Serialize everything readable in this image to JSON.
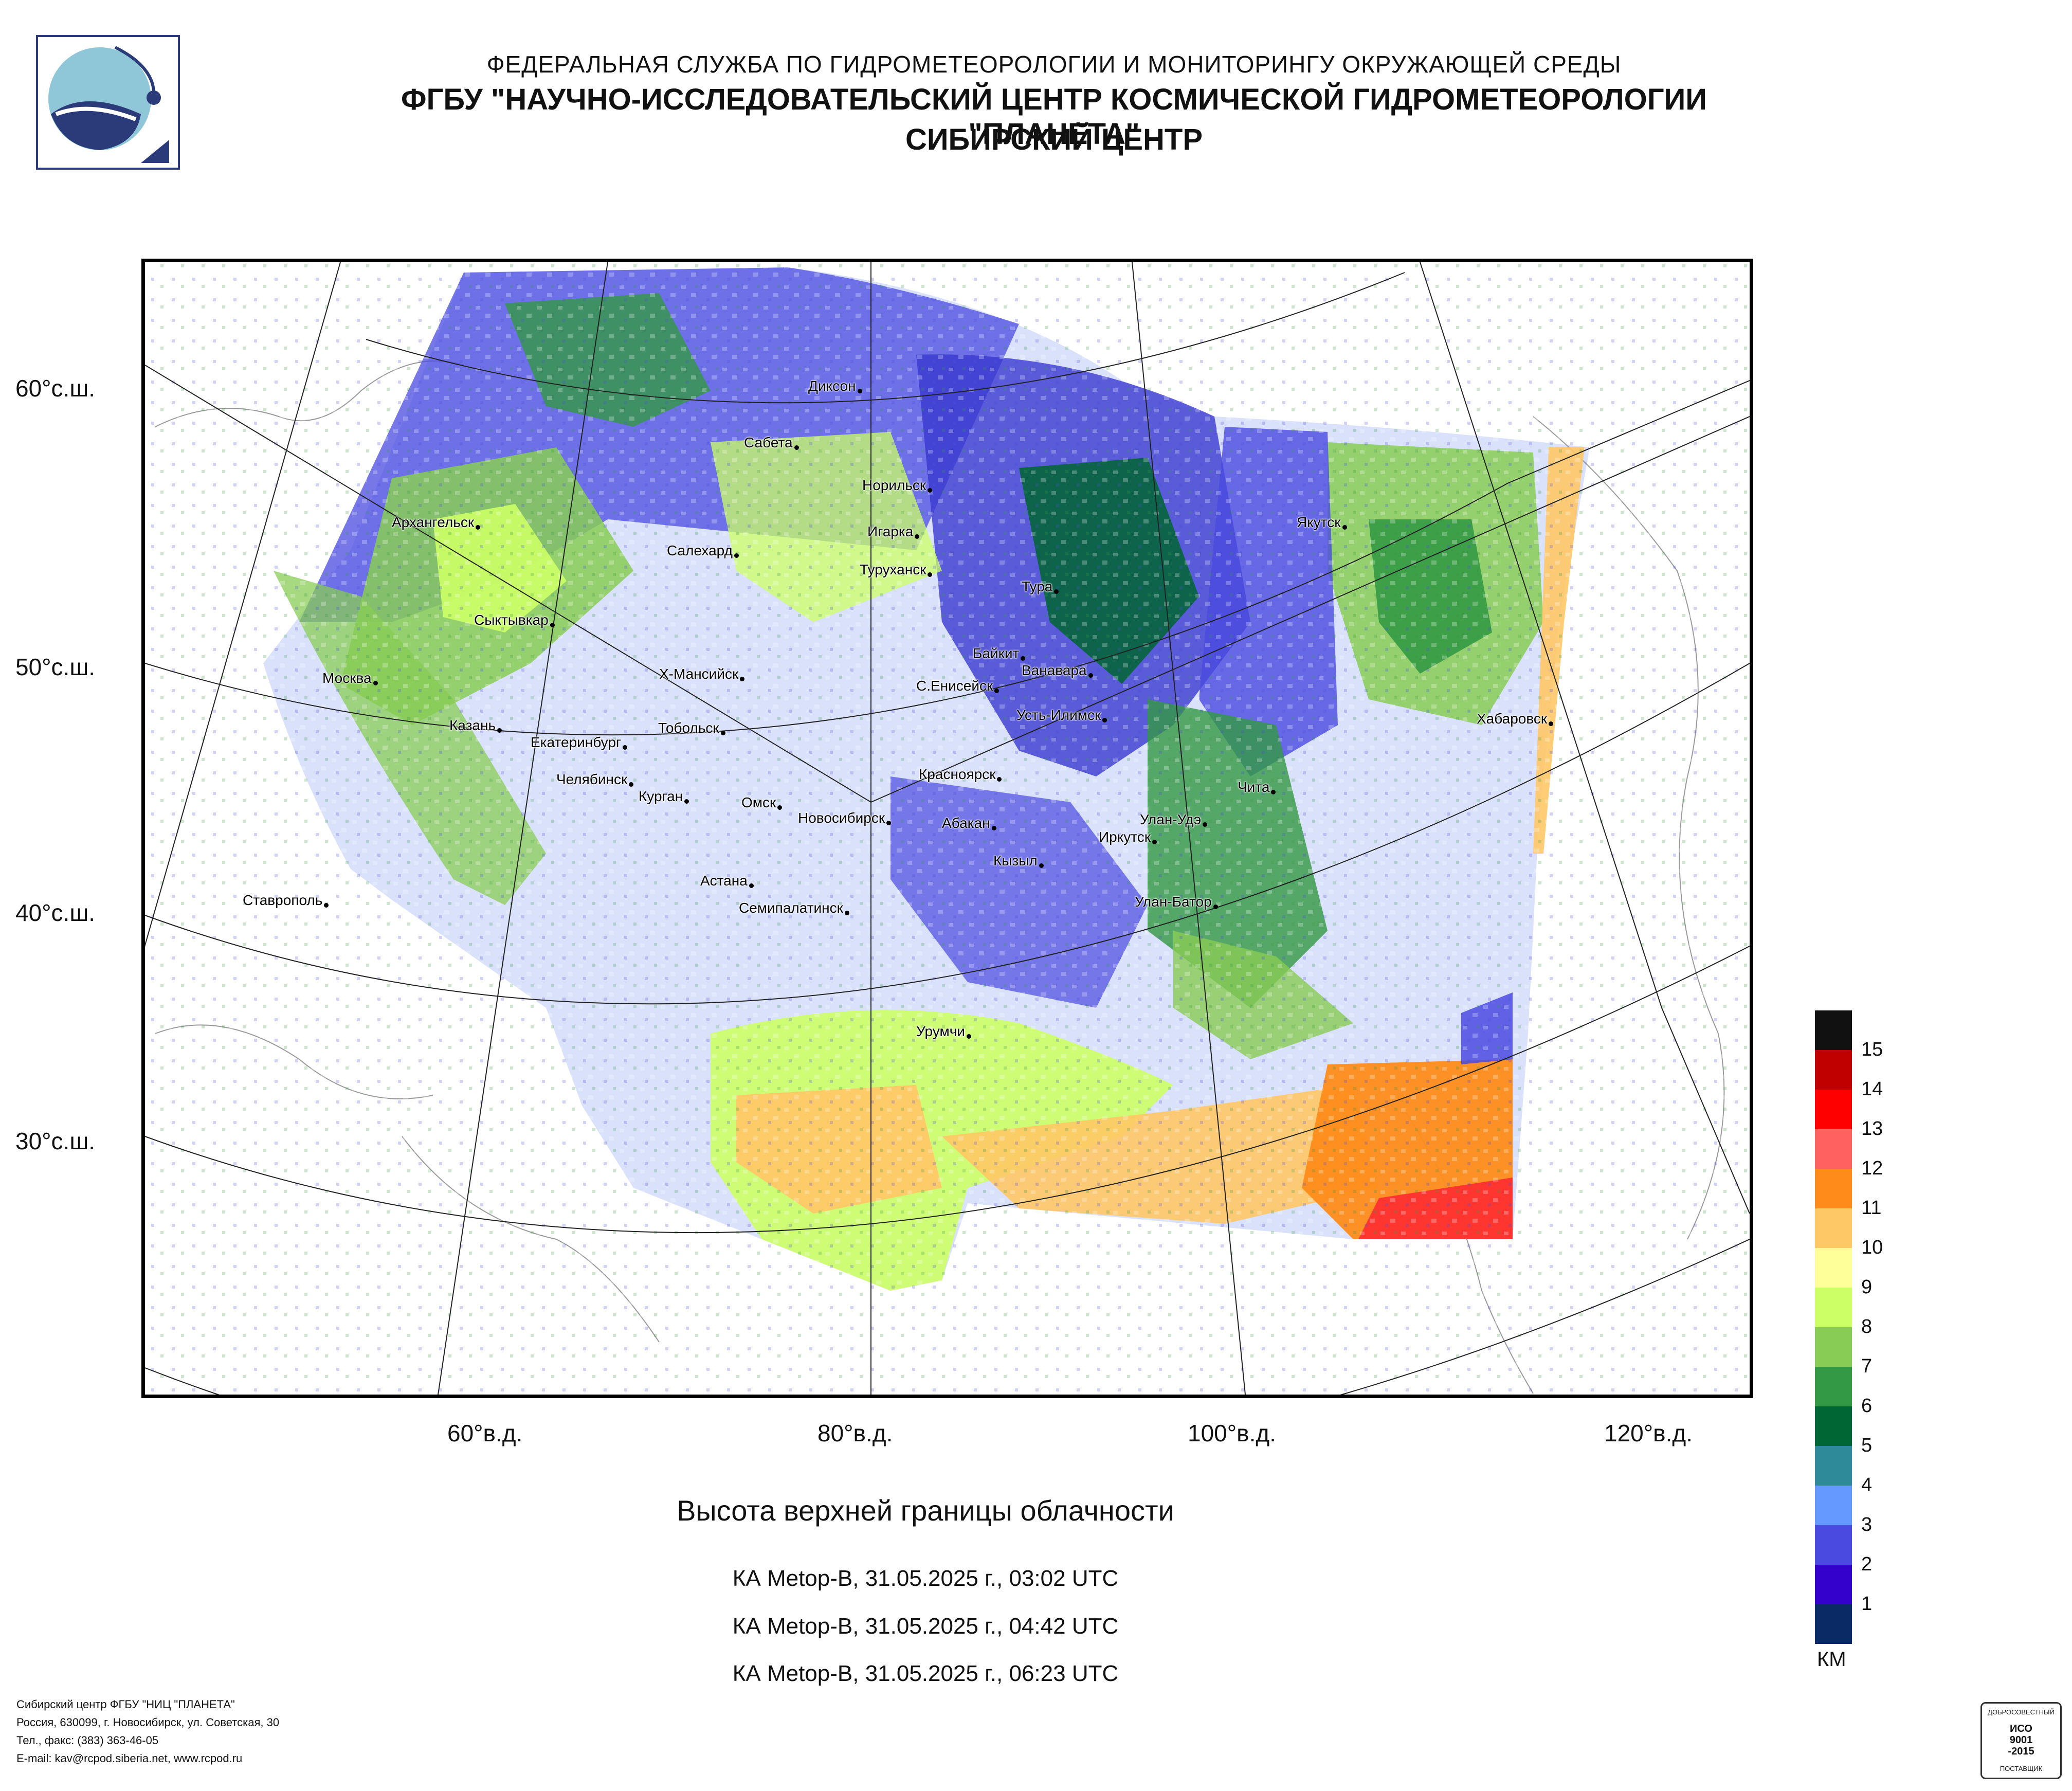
{
  "header": {
    "line1": "ФЕДЕРАЛЬНАЯ СЛУЖБА ПО ГИДРОМЕТЕОРОЛОГИИ И МОНИТОРИНГУ ОКРУЖАЮЩЕЙ СРЕДЫ",
    "line2": "ФГБУ \"НАУЧНО-ИССЛЕДОВАТЕЛЬСКИЙ ЦЕНТР КОСМИЧЕСКОЙ ГИДРОМЕТЕОРОЛОГИИ \"ПЛАНЕТА\"",
    "line3": "СИБИРСКИЙ ЦЕНТР"
  },
  "map": {
    "lat_labels": [
      "60°с.ш.",
      "50°с.ш.",
      "40°с.ш.",
      "30°с.ш."
    ],
    "lon_labels": [
      "60°в.д.",
      "80°в.д.",
      "100°в.д.",
      "120°в.д."
    ],
    "cities": [
      "Диксон",
      "Сабета",
      "Норильск",
      "Архангельск",
      "Салехард",
      "Игарка",
      "Туруханск",
      "Тура",
      "Якутск",
      "Сыктывкар",
      "Байкит",
      "Ванавара",
      "Москва",
      "Х-Мансийск",
      "С.Енисейск",
      "Усть-Илимск",
      "Казань",
      "Тобольск",
      "Хабаровск",
      "Екатеринбург",
      "Красноярск",
      "Чита",
      "Челябинск",
      "Курган",
      "Омск",
      "Новосибирск",
      "Абакан",
      "Улан-Удэ",
      "Иркутск",
      "Кызыл",
      "Астана",
      "Ставрополь",
      "Семипалатинск",
      "Улан-Батор",
      "Урумчи"
    ]
  },
  "legend": {
    "unit": "КМ",
    "levels": [
      {
        "value": "15",
        "color": "#111111"
      },
      {
        "value": "14",
        "color": "#c00000"
      },
      {
        "value": "13",
        "color": "#ff0000"
      },
      {
        "value": "12",
        "color": "#ff6060"
      },
      {
        "value": "11",
        "color": "#ff8c1a"
      },
      {
        "value": "10",
        "color": "#ffc866"
      },
      {
        "value": "9",
        "color": "#ffff99"
      },
      {
        "value": "8",
        "color": "#ccff66"
      },
      {
        "value": "7",
        "color": "#88cc55"
      },
      {
        "value": "6",
        "color": "#339944"
      },
      {
        "value": "5",
        "color": "#006633"
      },
      {
        "value": "4",
        "color": "#2e8a99"
      },
      {
        "value": "3",
        "color": "#6699ff"
      },
      {
        "value": "2",
        "color": "#4a4ae0"
      },
      {
        "value": "1",
        "color": "#3300cc"
      },
      {
        "value": "",
        "color": "#0a2a66"
      }
    ]
  },
  "title": "Высота верхней границы облачности",
  "passes": [
    "КА Metop-B, 31.05.2025 г., 03:02 UTC",
    "КА Metop-B, 31.05.2025 г., 04:42 UTC",
    "КА Metop-B, 31.05.2025 г., 06:23 UTC"
  ],
  "footer": [
    "Сибирский центр ФГБУ \"НИЦ \"ПЛАНЕТА\"",
    "Россия, 630099, г. Новосибирск, ул. Советская, 30",
    "Тел., факс: (383) 363-46-05",
    "E-mail: kav@rcpod.siberia.net, www.rcpod.ru"
  ],
  "certificate": {
    "top": "ДОБРОСОВЕСТНЫЙ",
    "line1": "ИСО",
    "line2": "9001",
    "line3": "-2015",
    "bottom": "ПОСТАВЩИК"
  }
}
